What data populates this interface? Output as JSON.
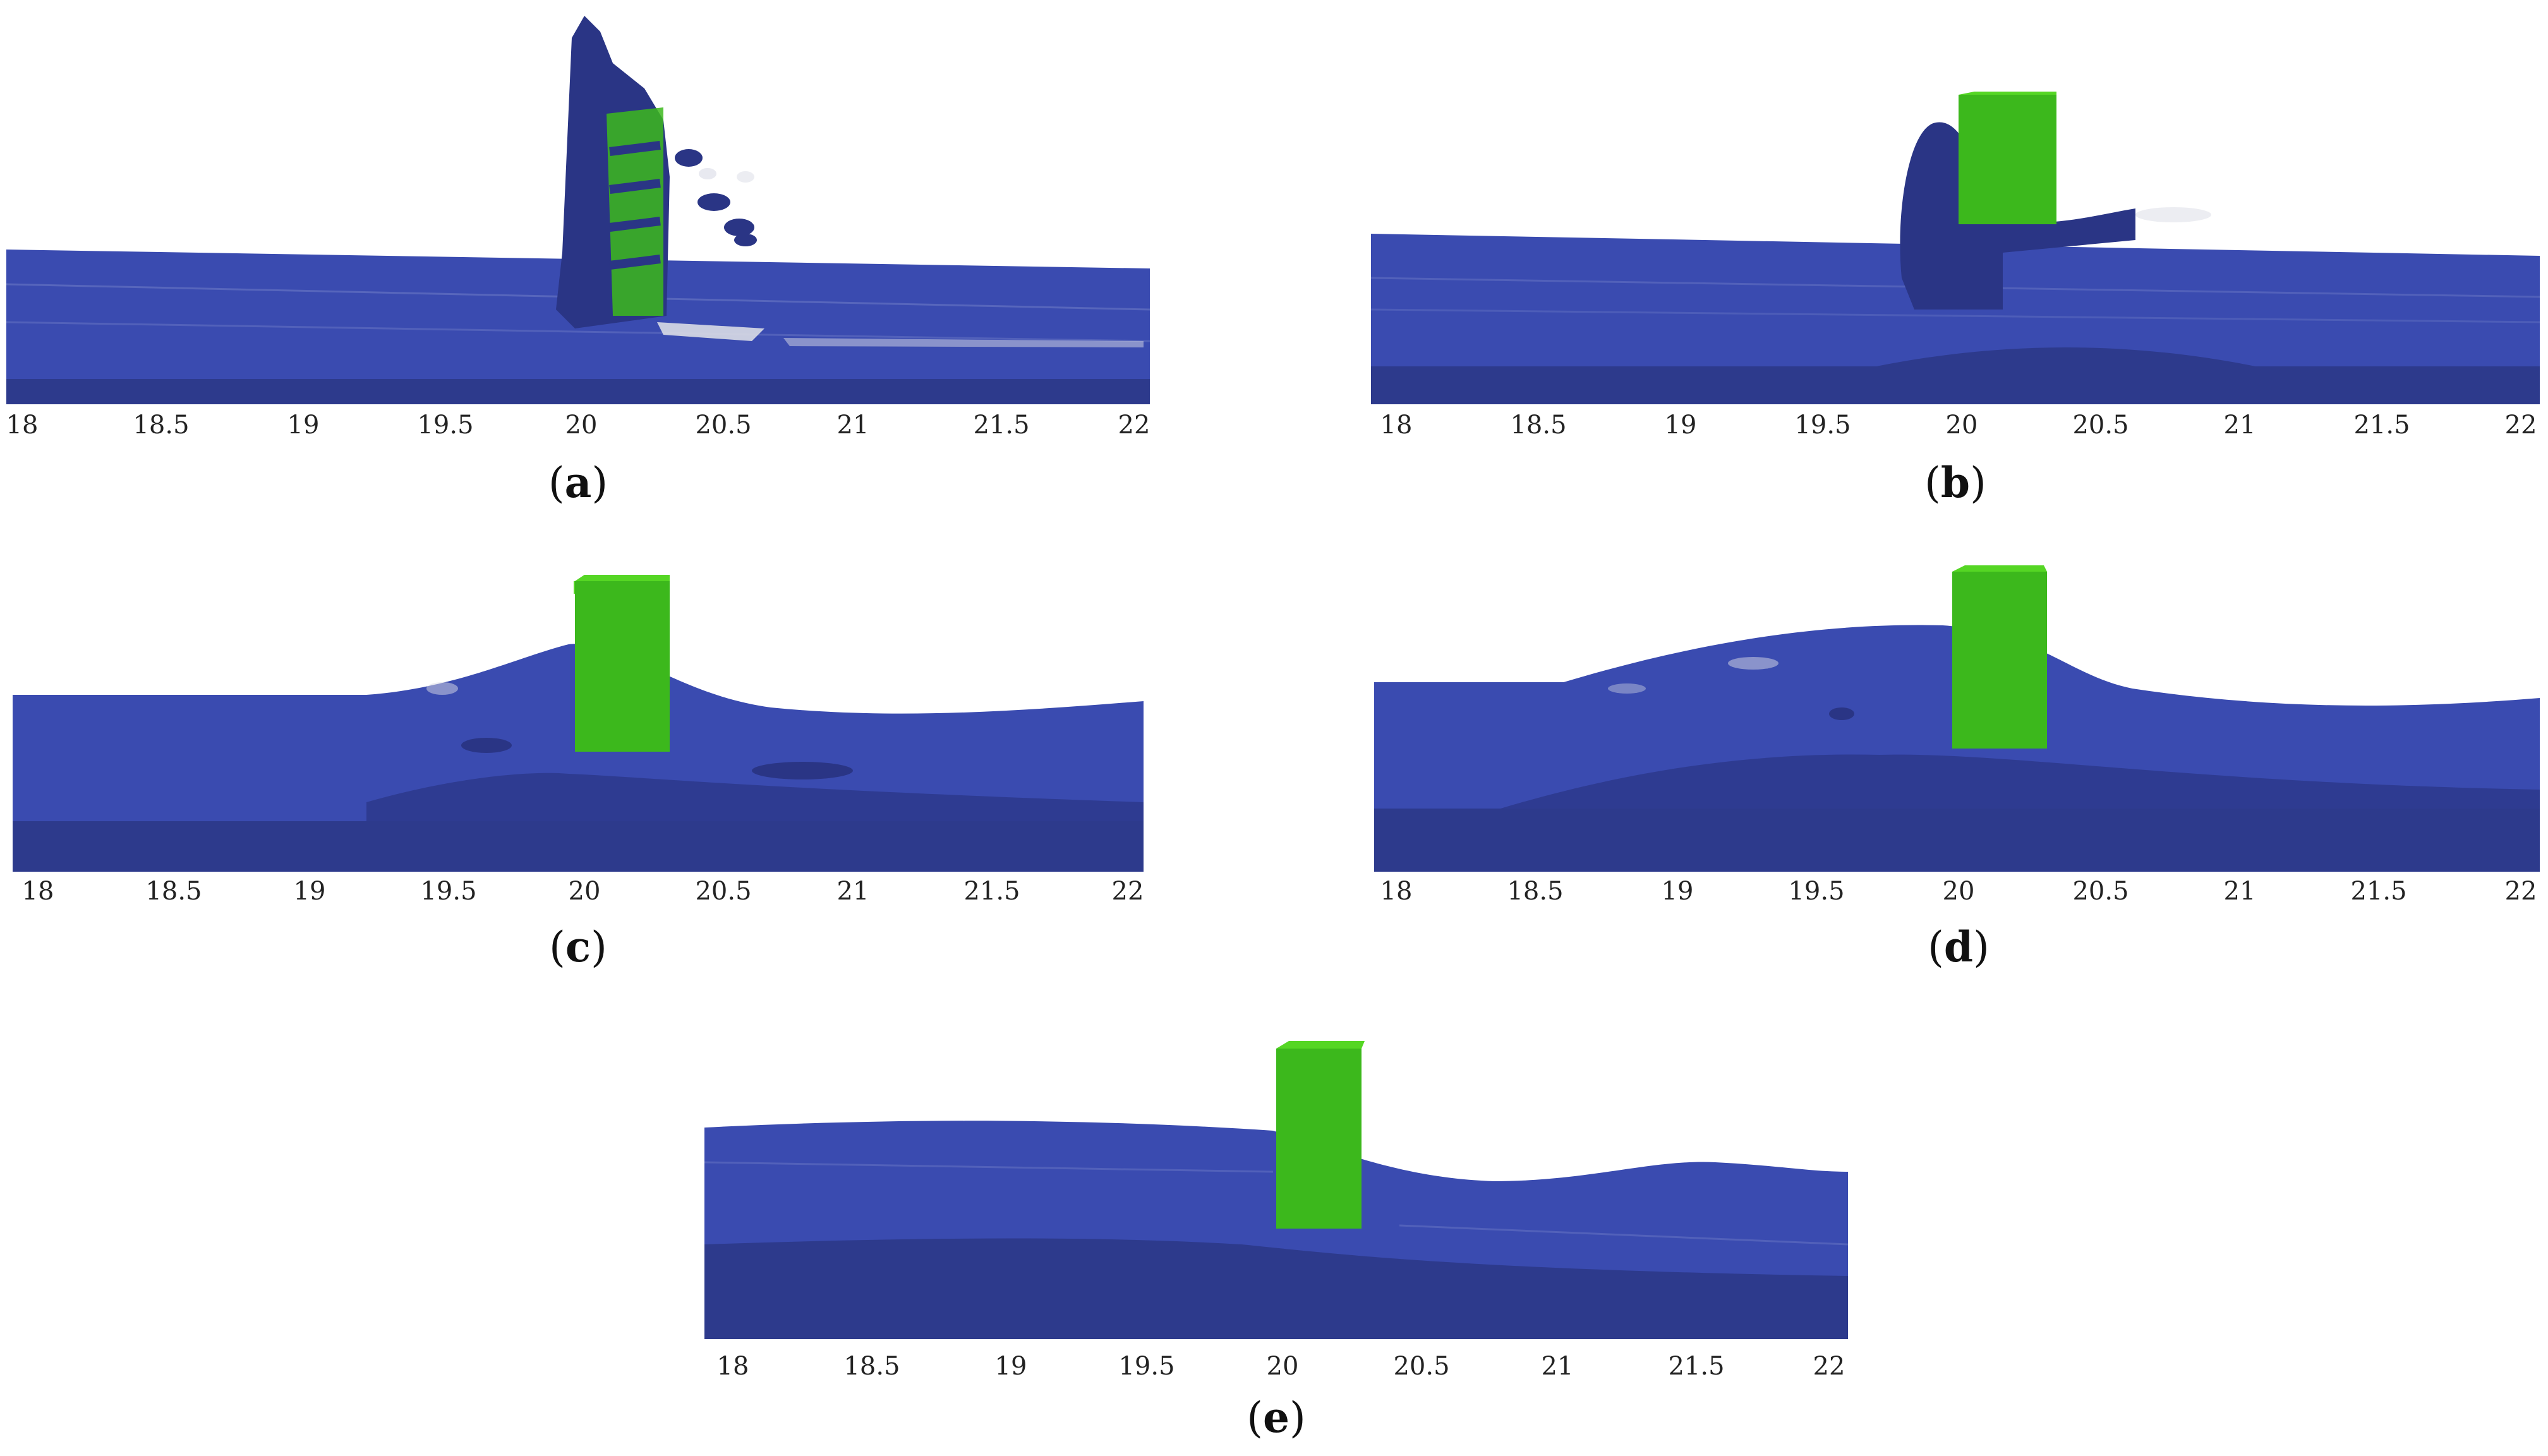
{
  "panels": [
    {
      "id": "a",
      "caption_open": "(",
      "caption_letter": "a",
      "caption_close": ")",
      "x_ticks": [
        "18",
        "18.5",
        "19",
        "19.5",
        "20",
        "20.5",
        "21",
        "21.5",
        "22"
      ]
    },
    {
      "id": "b",
      "caption_open": "(",
      "caption_letter": "b",
      "caption_close": ")",
      "x_ticks": [
        "18",
        "18.5",
        "19",
        "19.5",
        "20",
        "20.5",
        "21",
        "21.5",
        "22"
      ]
    },
    {
      "id": "c",
      "caption_open": "(",
      "caption_letter": "c",
      "caption_close": ")",
      "x_ticks": [
        "18",
        "18.5",
        "19",
        "19.5",
        "20",
        "20.5",
        "21",
        "21.5",
        "22"
      ]
    },
    {
      "id": "d",
      "caption_open": "(",
      "caption_letter": "d",
      "caption_close": ")",
      "x_ticks": [
        "18",
        "18.5",
        "19",
        "19.5",
        "20",
        "20.5",
        "21",
        "21.5",
        "22"
      ]
    },
    {
      "id": "e",
      "caption_open": "(",
      "caption_letter": "e",
      "caption_close": ")",
      "x_ticks": [
        "18",
        "18.5",
        "19",
        "19.5",
        "20",
        "20.5",
        "21",
        "21.5",
        "22"
      ]
    }
  ],
  "colors": {
    "water_surface": "#3a4bb0",
    "water_dark": "#2a3585",
    "water_base": "#2d3a8c",
    "block_front": "#3cb81c",
    "block_top": "#55d624",
    "block_side": "#2f8f16",
    "foam": "#d9dbe6"
  }
}
